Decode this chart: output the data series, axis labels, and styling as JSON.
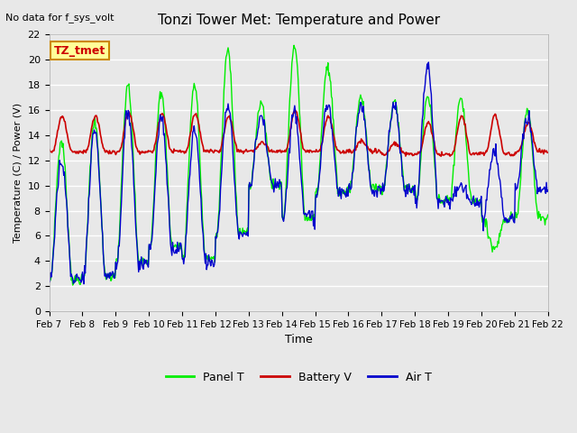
{
  "title": "Tonzi Tower Met: Temperature and Power",
  "top_left_text": "No data for f_sys_volt",
  "ylabel": "Temperature (C) / Power (V)",
  "xlabel": "Time",
  "ylim": [
    0,
    22
  ],
  "yticks": [
    0,
    2,
    4,
    6,
    8,
    10,
    12,
    14,
    16,
    18,
    20,
    22
  ],
  "xtick_labels": [
    "Feb 7",
    "Feb 8",
    "Feb 9",
    "Feb 10",
    "Feb 11",
    "Feb 12",
    "Feb 13",
    "Feb 14",
    "Feb 15",
    "Feb 16",
    "Feb 17",
    "Feb 18",
    "Feb 19",
    "Feb 20",
    "Feb 21",
    "Feb 22"
  ],
  "legend_entries": [
    "Panel T",
    "Battery V",
    "Air T"
  ],
  "legend_colors": [
    "#00ee00",
    "#cc0000",
    "#0000cc"
  ],
  "annotation_label": "TZ_tmet",
  "annotation_box_color": "#ffff99",
  "annotation_box_border": "#cc8800",
  "bg_color": "#e8e8e8",
  "plot_bg_color": "#e8e8e8",
  "grid_color": "#ffffff",
  "panel_t_color": "#00ee00",
  "battery_v_color": "#cc0000",
  "air_t_color": "#0000cc",
  "n_days": 15,
  "pts_per_day": 48,
  "day_profiles": [
    [
      13.5,
      2.5,
      12.0,
      2.5,
      12.7,
      15.5
    ],
    [
      15.0,
      2.8,
      14.5,
      2.8,
      12.7,
      15.5
    ],
    [
      18.0,
      4.0,
      16.0,
      3.8,
      12.7,
      15.8
    ],
    [
      17.5,
      5.2,
      15.5,
      5.0,
      12.7,
      15.7
    ],
    [
      18.0,
      4.2,
      14.5,
      4.0,
      12.7,
      15.7
    ],
    [
      20.8,
      6.3,
      16.5,
      6.2,
      12.7,
      15.5
    ],
    [
      16.5,
      10.0,
      15.5,
      10.0,
      12.7,
      13.4
    ],
    [
      21.0,
      7.5,
      16.0,
      7.5,
      12.7,
      16.0
    ],
    [
      19.5,
      9.5,
      16.5,
      9.3,
      12.7,
      15.5
    ],
    [
      17.0,
      9.8,
      16.5,
      9.7,
      12.7,
      13.5
    ],
    [
      16.5,
      9.8,
      16.5,
      9.7,
      12.5,
      13.4
    ],
    [
      17.0,
      8.8,
      19.5,
      8.7,
      12.5,
      15.0
    ],
    [
      17.0,
      8.8,
      10.0,
      8.7,
      12.5,
      15.5
    ],
    [
      5.0,
      7.4,
      12.8,
      7.3,
      12.5,
      15.6
    ],
    [
      16.0,
      7.5,
      15.5,
      9.5,
      12.7,
      15.0
    ]
  ]
}
